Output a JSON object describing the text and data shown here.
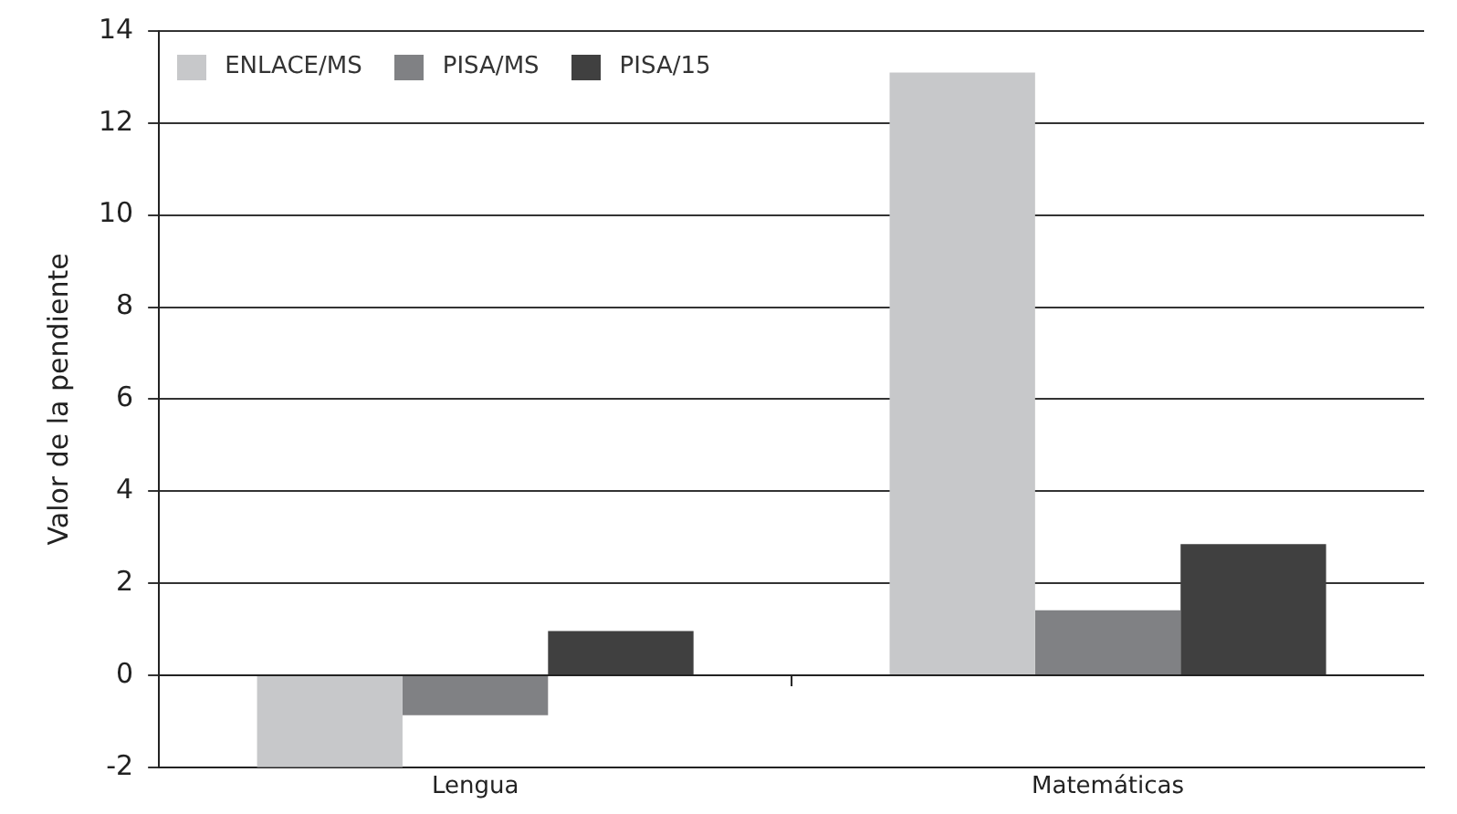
{
  "chart_data": {
    "type": "bar",
    "ylabel": "Valor de la pendiente",
    "categories": [
      "Lengua",
      "Matemáticas"
    ],
    "series": [
      {
        "name": "ENLACE/MS",
        "color": "#c7c8ca",
        "values": [
          -2.0,
          13.1
        ]
      },
      {
        "name": "PISA/MS",
        "color": "#808184",
        "values": [
          -0.87,
          1.41
        ]
      },
      {
        "name": "PISA/15",
        "color": "#404040",
        "values": [
          0.96,
          2.85
        ]
      }
    ],
    "ylim": [
      -2,
      14
    ],
    "yticks": [
      -2,
      0,
      2,
      4,
      6,
      8,
      10,
      12,
      14
    ],
    "grid": "y",
    "legend": "top left"
  }
}
